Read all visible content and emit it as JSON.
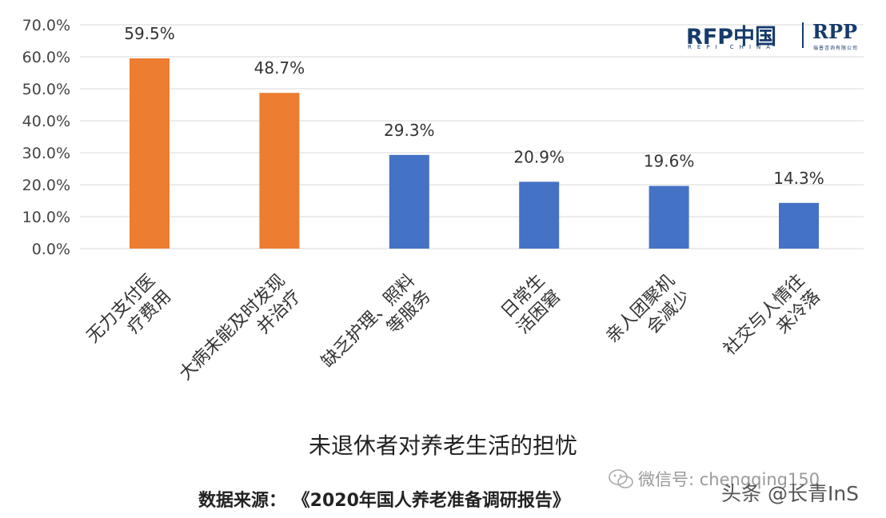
{
  "chart_data": {
    "type": "bar",
    "title": "未退休者对养老生活的担忧",
    "categories": [
      [
        "无力支付医",
        "疗费用"
      ],
      [
        "大病未能及时发现",
        "并治疗"
      ],
      [
        "缺乏护理、照料",
        "等服务"
      ],
      [
        "日常生",
        "活困窘"
      ],
      [
        "亲人团聚机",
        "会减少"
      ],
      [
        "社交与人情往",
        "来冷落"
      ]
    ],
    "values": [
      59.5,
      48.7,
      29.3,
      20.9,
      19.6,
      14.3
    ],
    "data_labels": [
      "59.5%",
      "48.7%",
      "29.3%",
      "20.9%",
      "19.6%",
      "14.3%"
    ],
    "bar_colors": [
      "#ED7D31",
      "#ED7D31",
      "#4472C4",
      "#4472C4",
      "#4472C4",
      "#4472C4"
    ],
    "ylim": [
      0,
      70
    ],
    "yticks": [
      "0.0%",
      "10.0%",
      "20.0%",
      "30.0%",
      "40.0%",
      "50.0%",
      "60.0%",
      "70.0%"
    ],
    "grid": true,
    "xlabel": "",
    "ylabel": ""
  },
  "source_text": "数据来源：  《2020年国人养老准备调研报告》",
  "logo": {
    "rfp": "RFP中国",
    "rfp_sub": "REPI CHINA",
    "rpp": "RPP",
    "rpp_sub": "瑞普咨询有限公司"
  },
  "watermarks": {
    "wechat": "微信号: chengqing150",
    "toutiao": "头条 @长青InS"
  },
  "colors": {
    "orange": "#ED7D31",
    "blue": "#4472C4",
    "grid": "#D9D9D9",
    "logo": "#163a6b"
  }
}
